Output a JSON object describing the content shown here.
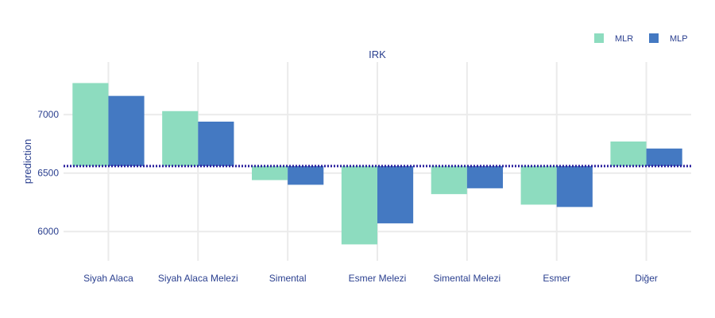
{
  "chart_data": {
    "type": "bar",
    "title": "IRK",
    "xlabel": "",
    "ylabel": "prediction",
    "categories": [
      "Siyah Alaca",
      "Siyah Alaca Melezi",
      "Simental",
      "Esmer Melezi",
      "Simental Melezi",
      "Esmer",
      "Diğer"
    ],
    "baseline": 6560,
    "ylim": [
      5750,
      7450
    ],
    "yticks": [
      6000,
      6500,
      7000
    ],
    "ytick_labels": [
      "6000",
      "6500",
      "7000"
    ],
    "grid": true,
    "legend_position": "top-right",
    "series": [
      {
        "name": "MLR",
        "color": "#8ddcbf",
        "values": [
          7270,
          7030,
          6440,
          5890,
          6320,
          6230,
          6770
        ]
      },
      {
        "name": "MLP",
        "color": "#4479c2",
        "values": [
          7160,
          6940,
          6400,
          6070,
          6370,
          6210,
          6710
        ]
      }
    ],
    "baseline_color": "#2a1f9e"
  }
}
